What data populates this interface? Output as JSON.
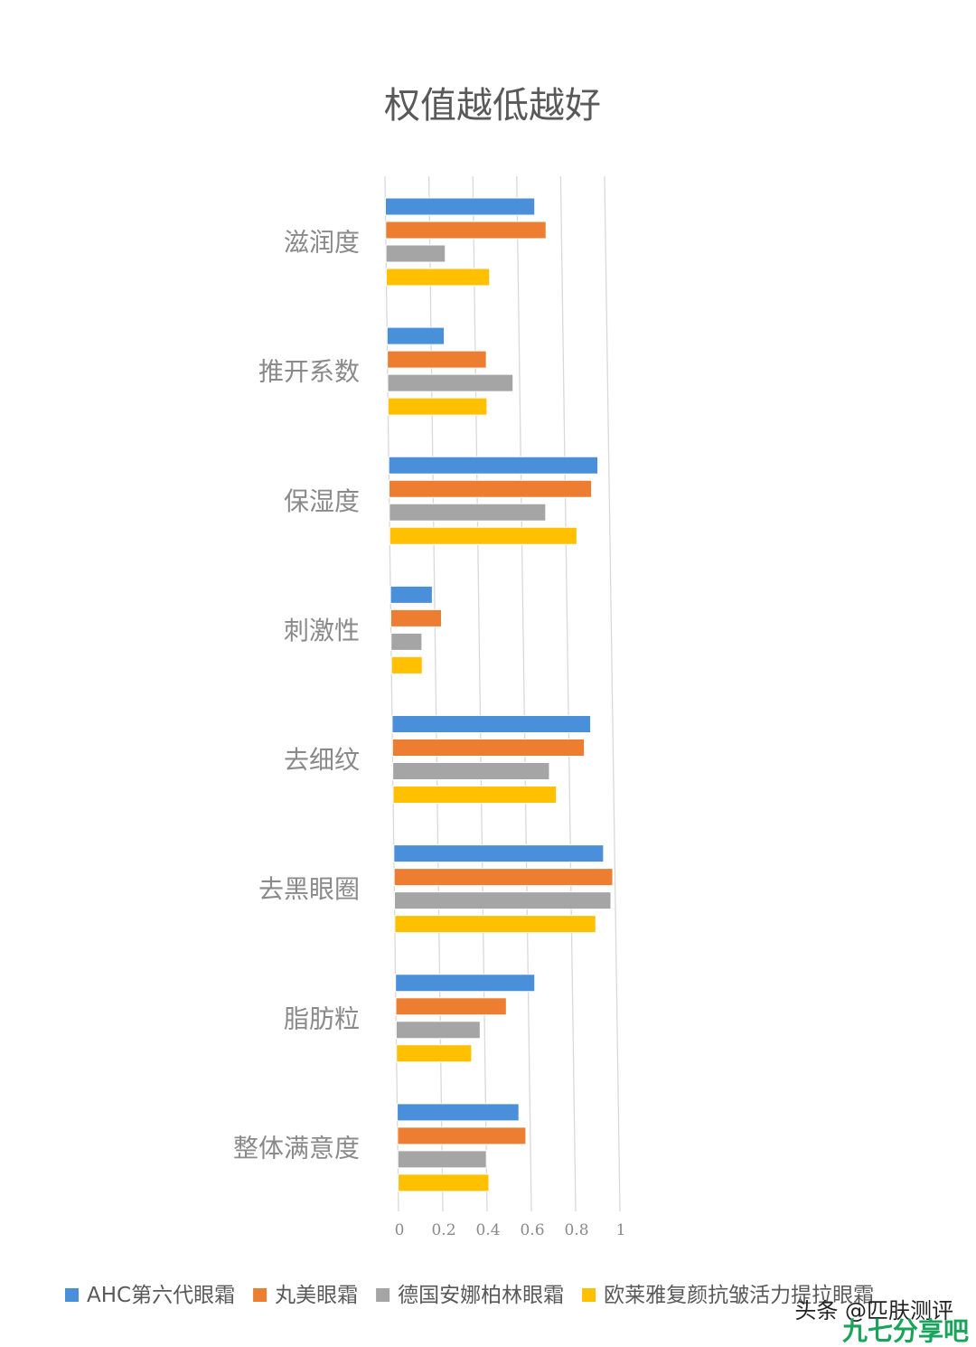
{
  "chart_data": {
    "type": "bar",
    "orientation": "horizontal",
    "title": "权值越低越好",
    "categories": [
      "滋润度",
      "推开系数",
      "保湿度",
      "刺激性",
      "去细纹",
      "去黑眼圈",
      "脂肪粒",
      "整体满意度"
    ],
    "series": [
      {
        "name": "AHC第六代眼霜",
        "color": "#4a8fd9",
        "values": [
          0.68,
          0.26,
          0.95,
          0.19,
          0.9,
          0.95,
          0.63,
          0.55
        ]
      },
      {
        "name": "丸美眼霜",
        "color": "#ed7d31",
        "values": [
          0.73,
          0.45,
          0.92,
          0.23,
          0.87,
          0.99,
          0.5,
          0.58
        ]
      },
      {
        "name": "德国安娜柏林眼霜",
        "color": "#a5a5a5",
        "values": [
          0.27,
          0.57,
          0.71,
          0.14,
          0.71,
          0.98,
          0.38,
          0.4
        ]
      },
      {
        "name": "欧莱雅复颜抗皱活力提拉眼霜",
        "color": "#ffc000",
        "values": [
          0.47,
          0.45,
          0.85,
          0.14,
          0.74,
          0.91,
          0.34,
          0.41
        ]
      }
    ],
    "xticks": [
      "0",
      "0.2",
      "0.4",
      "0.6",
      "0.8",
      "1"
    ],
    "xlim": [
      0,
      1
    ],
    "grid": true,
    "legend_position": "bottom"
  },
  "watermark": {
    "line1": "头条 @匹肤测评",
    "line2": "九七分享吧"
  }
}
